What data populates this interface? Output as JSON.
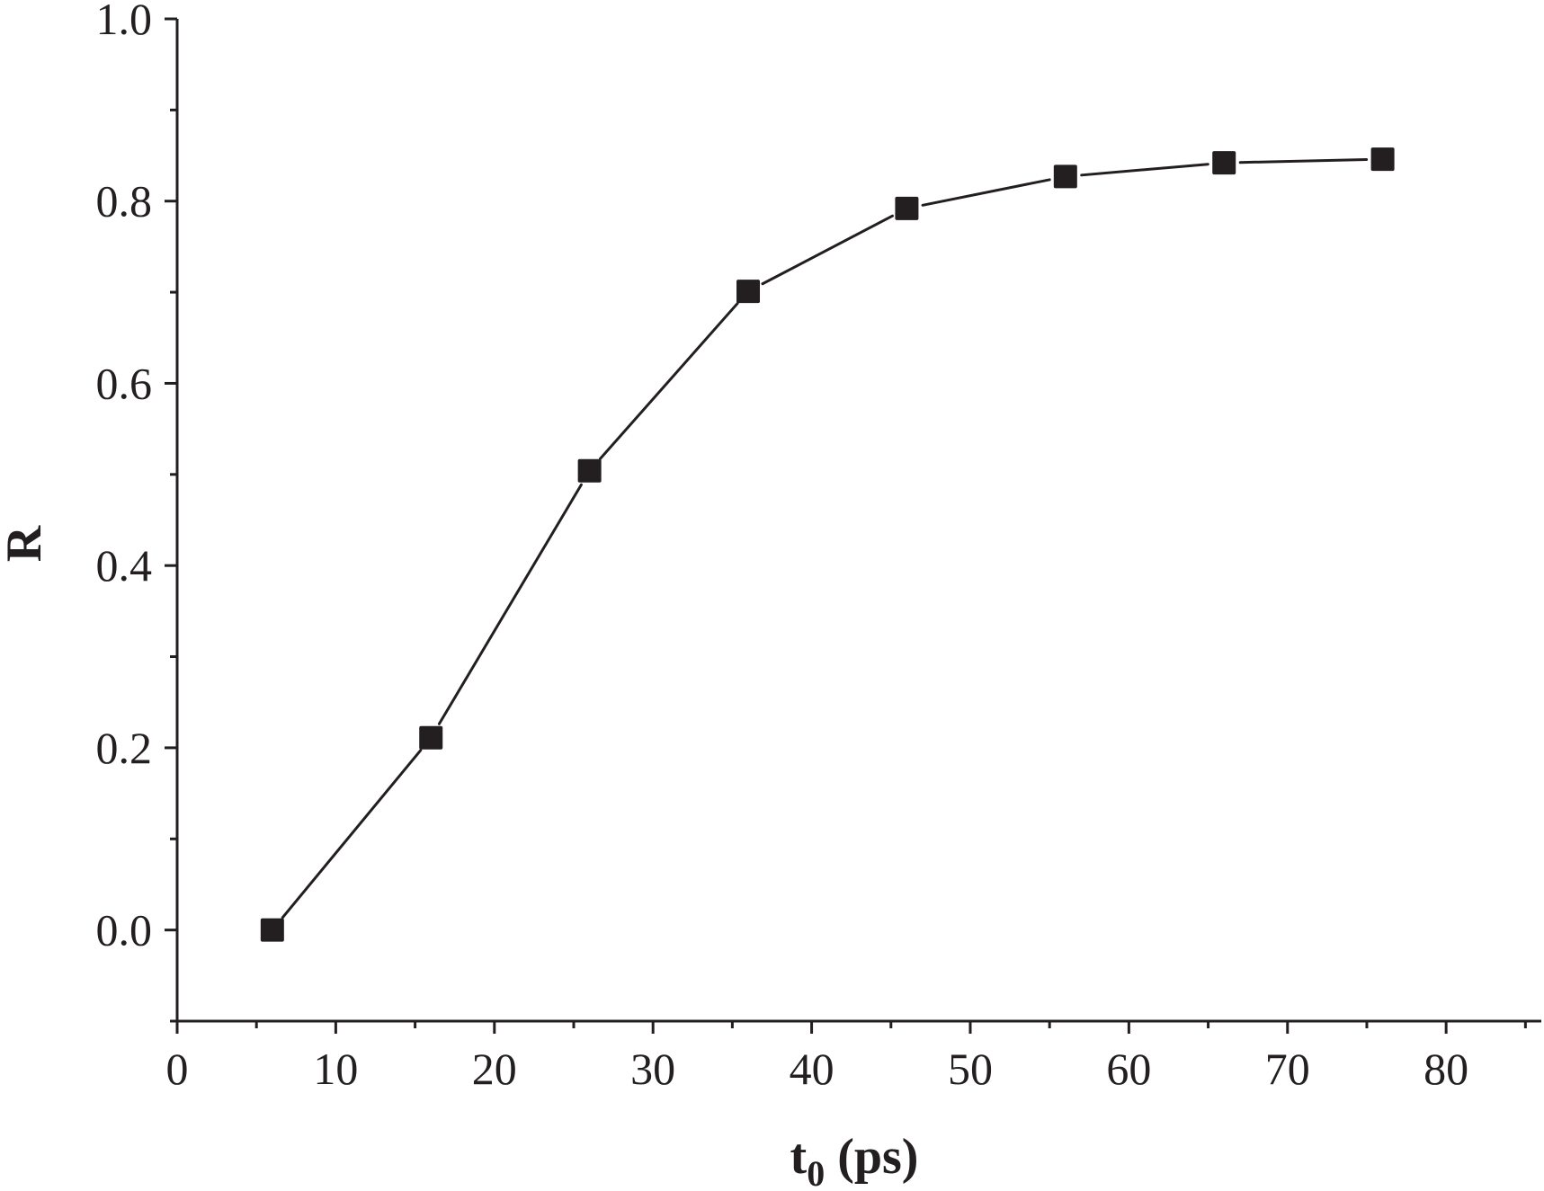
{
  "chart_data": {
    "type": "line",
    "title": "",
    "xlabel": "t",
    "xlabel_subscript": "0",
    "xlabel_unit": "(ps)",
    "ylabel": "R",
    "xlim": [
      0,
      86
    ],
    "ylim": [
      -0.1,
      1.0
    ],
    "xticks": [
      "0",
      "10",
      "20",
      "30",
      "40",
      "50",
      "60",
      "70",
      "80"
    ],
    "yticks": [
      "0.0",
      "0.2",
      "0.4",
      "0.6",
      "0.8",
      "1.0"
    ],
    "grid": false,
    "series": [
      {
        "name": "R",
        "marker": "filled-square",
        "color": "#231f20",
        "x": [
          6,
          16,
          26,
          36,
          46,
          56,
          66,
          76
        ],
        "y": [
          0.0,
          0.211,
          0.504,
          0.701,
          0.792,
          0.827,
          0.842,
          0.846
        ]
      }
    ]
  }
}
